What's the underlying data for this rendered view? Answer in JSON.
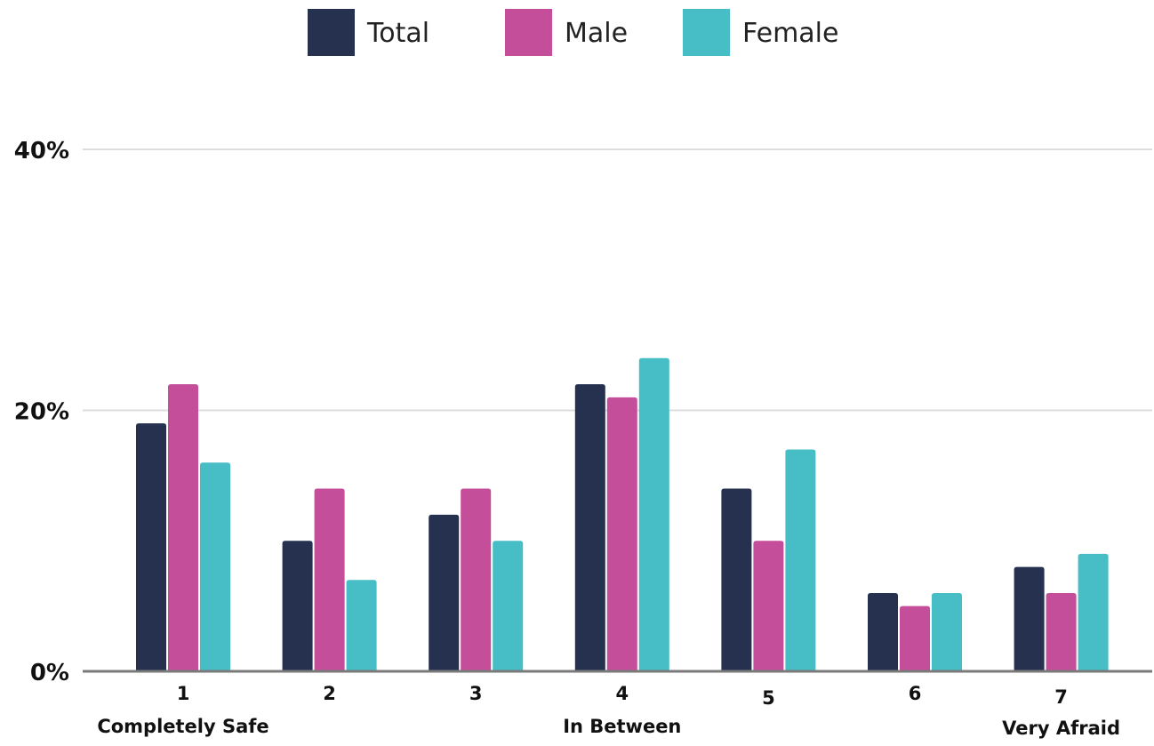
{
  "chart_data": {
    "type": "bar",
    "categories": [
      "1",
      "2",
      "3",
      "4",
      "5",
      "6",
      "7"
    ],
    "category_sublabels": [
      "Completely Safe",
      "",
      "",
      "In Between",
      "",
      "",
      "Very Afraid"
    ],
    "series": [
      {
        "name": "Total",
        "values": [
          19,
          10,
          12,
          22,
          14,
          6,
          8
        ]
      },
      {
        "name": "Male",
        "values": [
          22,
          14,
          14,
          21,
          10,
          5,
          6
        ]
      },
      {
        "name": "Female",
        "values": [
          16,
          7,
          10,
          24,
          17,
          6,
          9
        ]
      }
    ],
    "colors": [
      "#26304f",
      "#c44e9a",
      "#47bdc6"
    ],
    "y_ticks": [
      0,
      20,
      40
    ],
    "y_tick_labels": [
      "0%",
      "20%",
      "40%"
    ],
    "ylim": [
      0,
      40
    ],
    "title": "",
    "xlabel": "",
    "ylabel": "",
    "legend_position": "top-center",
    "grid": true
  }
}
